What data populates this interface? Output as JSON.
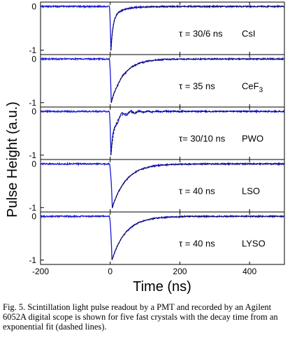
{
  "figure": {
    "ylabel": "Pulse Height (a.u.)",
    "xlabel": "Time (ns)",
    "caption": "Fig. 5.   Scintillation light pulse readout by a PMT and recorded by an Agilent 6052A digital scope is shown for five fast crystals with the decay time from an exponential fit (dashed lines)."
  },
  "colors": {
    "measured": "#1a1ad6",
    "fit": "#000000",
    "axes": "#000000"
  },
  "chart_data": {
    "type": "line",
    "shared_x": {
      "label": "Time (ns)",
      "lim": [
        -200,
        500
      ],
      "ticks": [
        -200,
        0,
        200,
        400
      ],
      "tick_labels": [
        "-200",
        "0",
        "200",
        "400"
      ]
    },
    "panels": [
      {
        "crystal": "CsI",
        "label_main": "CsI",
        "label_sub": "",
        "decay_label": "τ = 30/6 ns",
        "ylim": [
          -1.1,
          0.1
        ],
        "yticks": [
          0,
          -1
        ],
        "ytick_labels": [
          "0",
          "-1"
        ],
        "fast_tau": 6,
        "slow_tau": 30,
        "fast_frac": 0.75,
        "peak_time": 2,
        "rise": 1.5,
        "oscillation": 0
      },
      {
        "crystal": "CeF3",
        "label_main": "CeF",
        "label_sub": "3",
        "decay_label": "τ = 35 ns",
        "ylim": [
          -1.1,
          0.1
        ],
        "yticks": [
          0,
          -1
        ],
        "ytick_labels": [
          "0",
          "-1"
        ],
        "fast_tau": 35,
        "slow_tau": 35,
        "fast_frac": 1.0,
        "peak_time": 3,
        "rise": 2,
        "oscillation": 0.02
      },
      {
        "crystal": "PWO",
        "label_main": "PWO",
        "label_sub": "",
        "decay_label": "τ= 30/10 ns",
        "ylim": [
          -1.1,
          0.1
        ],
        "yticks": [
          0,
          -1
        ],
        "ytick_labels": [
          "0",
          "-1"
        ],
        "fast_tau": 10,
        "slow_tau": 30,
        "fast_frac": 0.85,
        "peak_time": 2,
        "rise": 1.2,
        "oscillation": 0.08
      },
      {
        "crystal": "LSO",
        "label_main": "LSO",
        "label_sub": "",
        "decay_label": "τ = 40 ns",
        "ylim": [
          -1.1,
          0.1
        ],
        "yticks": [
          0,
          -1
        ],
        "ytick_labels": [
          "0",
          "-1"
        ],
        "fast_tau": 40,
        "slow_tau": 40,
        "fast_frac": 1.0,
        "peak_time": 6,
        "rise": 3,
        "oscillation": 0
      },
      {
        "crystal": "LYSO",
        "label_main": "LYSO",
        "label_sub": "",
        "decay_label": "τ = 40 ns",
        "ylim": [
          -1.1,
          0.1
        ],
        "yticks": [
          0,
          -1
        ],
        "ytick_labels": [
          "0",
          "-1"
        ],
        "fast_tau": 40,
        "slow_tau": 40,
        "fast_frac": 1.0,
        "peak_time": 5,
        "rise": 3,
        "oscillation": 0
      }
    ]
  }
}
